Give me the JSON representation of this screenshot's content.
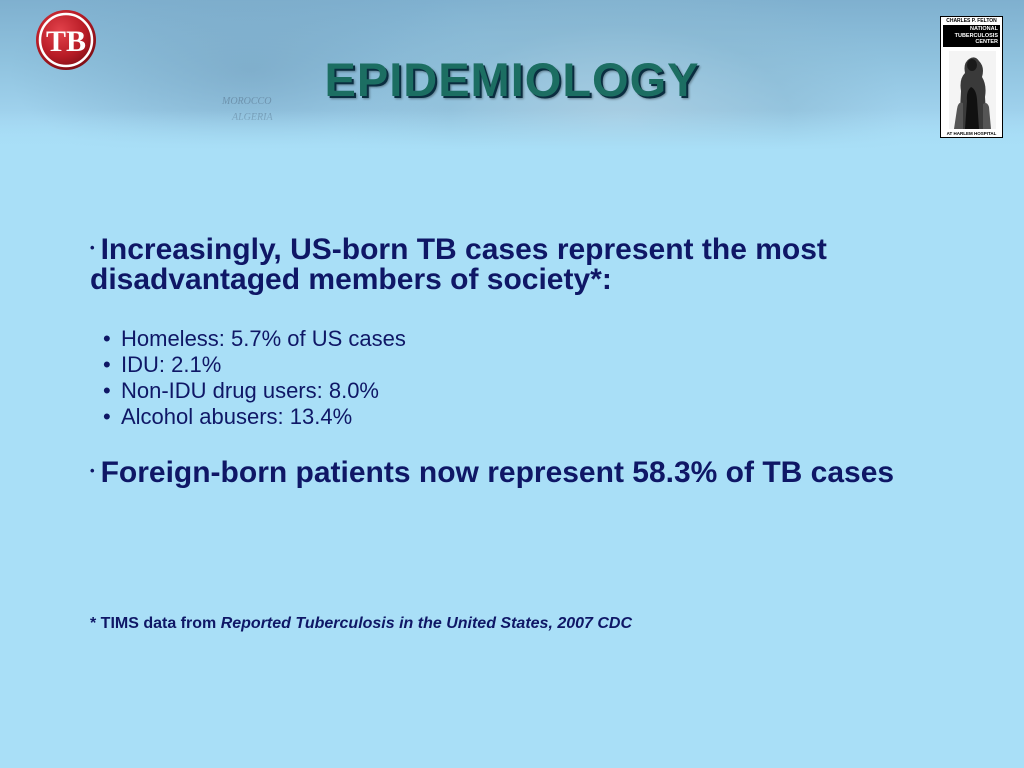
{
  "title": "EPIDEMIOLOGY",
  "logo": {
    "text": "TB",
    "icon": "tb-logo-icon",
    "color": "#b81c26"
  },
  "map_labels": [
    "MOROCCO",
    "ALGERIA"
  ],
  "badge": {
    "top_line": "CHARLES P. FELTON",
    "name_lines": [
      "NATIONAL",
      "TUBERCULOSIS",
      "CENTER"
    ],
    "bottom_line": "AT HARLEM HOSPITAL"
  },
  "bullets": [
    {
      "marker": "•",
      "text": "Increasingly, US-born TB cases represent the most disadvantaged members of society*:"
    },
    {
      "marker": "•",
      "text": "Foreign-born patients now represent 58.3% of TB cases"
    }
  ],
  "sub_items": [
    {
      "marker": "•",
      "text": "Homeless: 5.7% of US cases"
    },
    {
      "marker": "•",
      "text": "IDU: 2.1%"
    },
    {
      "marker": "•",
      "text": "Non-IDU drug users: 8.0%"
    },
    {
      "marker": "•",
      "text": "Alcohol abusers: 13.4%"
    }
  ],
  "footnote": {
    "prefix": "* TIMS data from ",
    "source": "Reported Tuberculosis in the United States, 2007 CDC"
  },
  "colors": {
    "background": "#a9dff7",
    "text": "#0f1766",
    "title": "#1c6e62"
  }
}
